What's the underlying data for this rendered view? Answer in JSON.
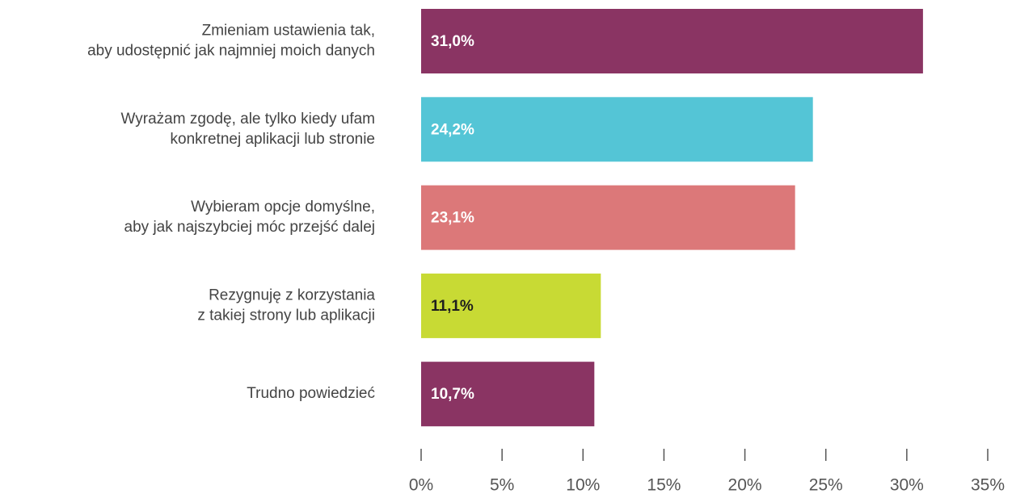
{
  "chart_data": {
    "type": "barh",
    "categories": [
      [
        "Zmieniam ustawienia tak,",
        "aby udostępnić jak najmniej moich danych"
      ],
      [
        "Wyrażam zgodę, ale tylko kiedy ufam",
        "konkretnej aplikacji lub stronie"
      ],
      [
        "Wybieram opcje domyślne,",
        "aby jak najszybciej móc przejść dalej"
      ],
      [
        "Rezygnuję z korzystania",
        "z takiej strony lub aplikacji"
      ],
      [
        "Trudno powiedzieć"
      ]
    ],
    "values": [
      31.0,
      24.2,
      23.1,
      11.1,
      10.7
    ],
    "value_labels": [
      "31,0%",
      "24,2%",
      "23,1%",
      "11,1%",
      "10,7%"
    ],
    "colors": [
      "#8a3463",
      "#54c5d6",
      "#dc7879",
      "#c8da34",
      "#8a3463"
    ],
    "label_colors": [
      "#ffffff",
      "#ffffff",
      "#ffffff",
      "#1e1e1e",
      "#ffffff"
    ],
    "xlim": [
      0,
      35
    ],
    "xticks": [
      {
        "value": 0,
        "label": "0%"
      },
      {
        "value": 5,
        "label": "5%"
      },
      {
        "value": 10,
        "label": "10%"
      },
      {
        "value": 15,
        "label": "15%"
      },
      {
        "value": 20,
        "label": "20%"
      },
      {
        "value": 25,
        "label": "25%"
      },
      {
        "value": 30,
        "label": "30%"
      },
      {
        "value": 35,
        "label": "35%"
      }
    ],
    "grid": false
  }
}
